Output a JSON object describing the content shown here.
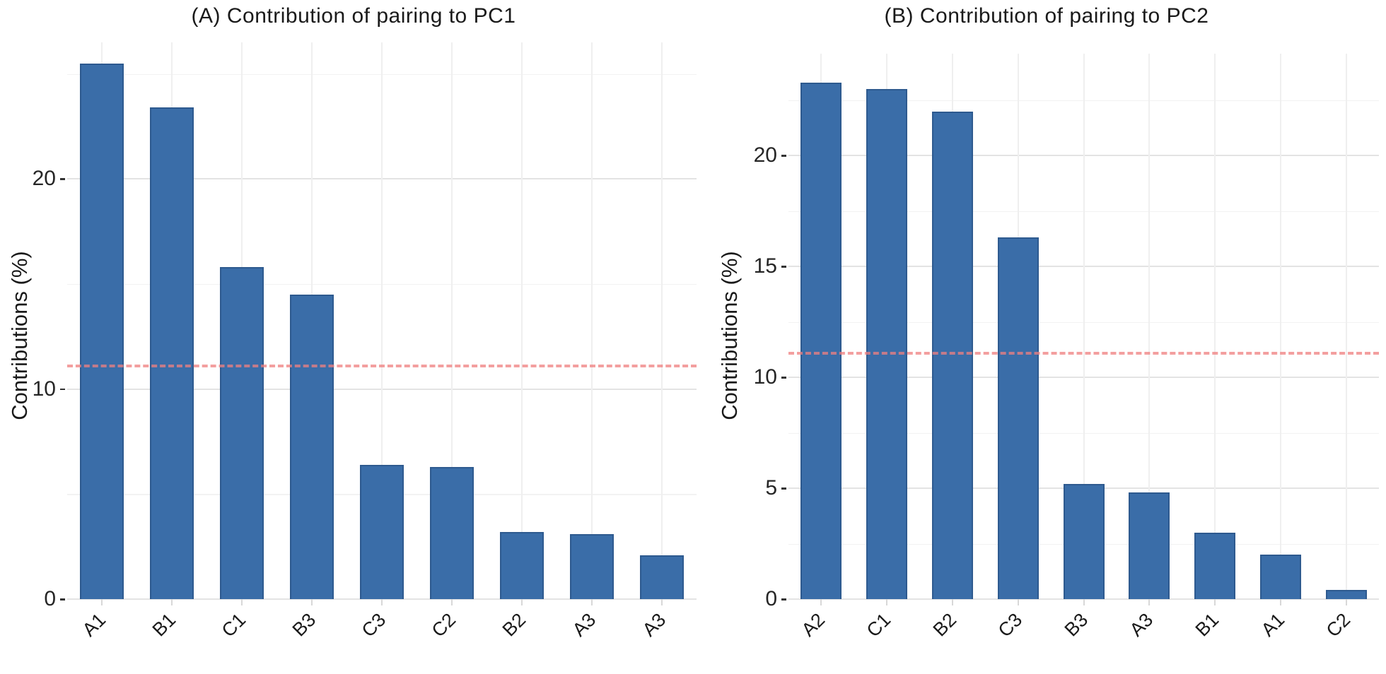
{
  "style": {
    "background": "#FFFFFF",
    "grid_major": "#E3E3E3",
    "grid_minor": "#F2F2F2",
    "grid_vertical": "#EFEFEF",
    "x_tick_color": "#D8D8D8",
    "y_tick_color": "#333333",
    "axis_text_color": "#262626",
    "title_color": "#1A1A1A"
  },
  "chart_data": [
    {
      "type": "bar",
      "title": "(A) Contribution of pairing to PC1",
      "ylabel": "Contributions (%)",
      "xlabel": "",
      "categories": [
        "A1",
        "B1",
        "C1",
        "B3",
        "C3",
        "C2",
        "B2",
        "A3",
        "A3"
      ],
      "values": [
        25.5,
        23.4,
        15.8,
        14.5,
        6.4,
        6.3,
        3.2,
        3.1,
        2.1
      ],
      "ylim": [
        0,
        26.5
      ],
      "yticks": [
        0,
        10,
        20
      ],
      "yticks_minor": [
        5,
        15,
        25
      ],
      "grid": true,
      "legend": "none",
      "bar_color": "#3A6DA8",
      "bar_border_color": "#2E5A8F",
      "threshold_line": {
        "value": 11.1,
        "color": "#F08080",
        "style": "dashed"
      }
    },
    {
      "type": "bar",
      "title": "(B) Contribution of pairing to PC2",
      "ylabel": "Contributions (%)",
      "xlabel": "",
      "categories": [
        "A2",
        "C1",
        "B2",
        "C3",
        "B3",
        "A3",
        "B1",
        "A1",
        "C2"
      ],
      "values": [
        23.3,
        23.0,
        22.0,
        16.3,
        5.2,
        4.8,
        3.0,
        2.0,
        0.4
      ],
      "ylim": [
        0,
        24.6
      ],
      "yticks": [
        0,
        5,
        10,
        15,
        20
      ],
      "yticks_minor": [
        2.5,
        7.5,
        12.5,
        17.5,
        22.5
      ],
      "grid": true,
      "legend": "none",
      "bar_color": "#3A6DA8",
      "bar_border_color": "#2E5A8F",
      "threshold_line": {
        "value": 11.1,
        "color": "#F08080",
        "style": "dashed"
      }
    }
  ]
}
